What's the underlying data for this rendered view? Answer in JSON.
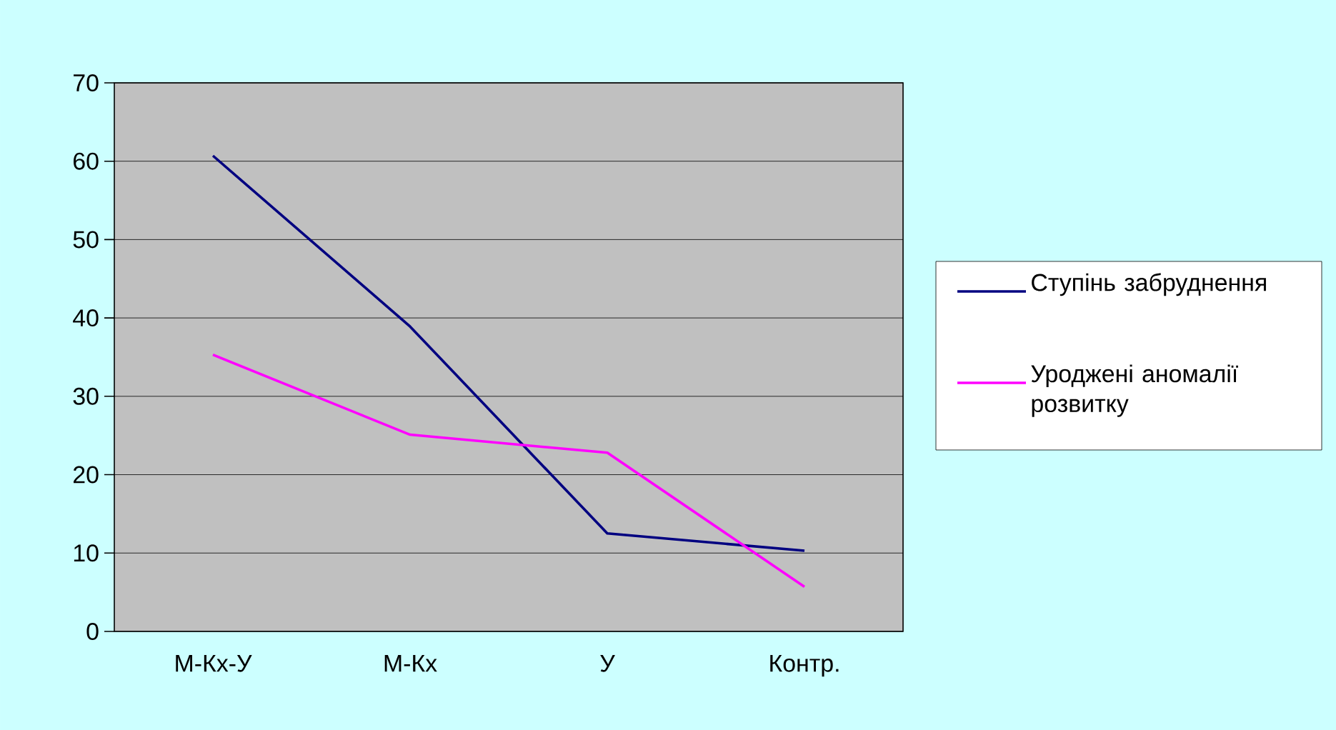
{
  "chart_data": {
    "type": "line",
    "categories": [
      "М-Кх-У",
      "М-Кх",
      "У",
      "Контр."
    ],
    "series": [
      {
        "name": "Ступінь забруднення",
        "color": "#000080",
        "values": [
          60.7,
          38.9,
          12.5,
          10.3
        ]
      },
      {
        "name": "Уроджені аномалії розвитку",
        "color": "#ff00ff",
        "values": [
          35.3,
          25.1,
          22.8,
          5.7
        ]
      }
    ],
    "ylim": [
      0,
      70
    ],
    "yticks": [
      0,
      10,
      20,
      30,
      40,
      50,
      60,
      70
    ],
    "grid": "y",
    "legend": "right",
    "marker": "none",
    "line_style": "solid"
  }
}
